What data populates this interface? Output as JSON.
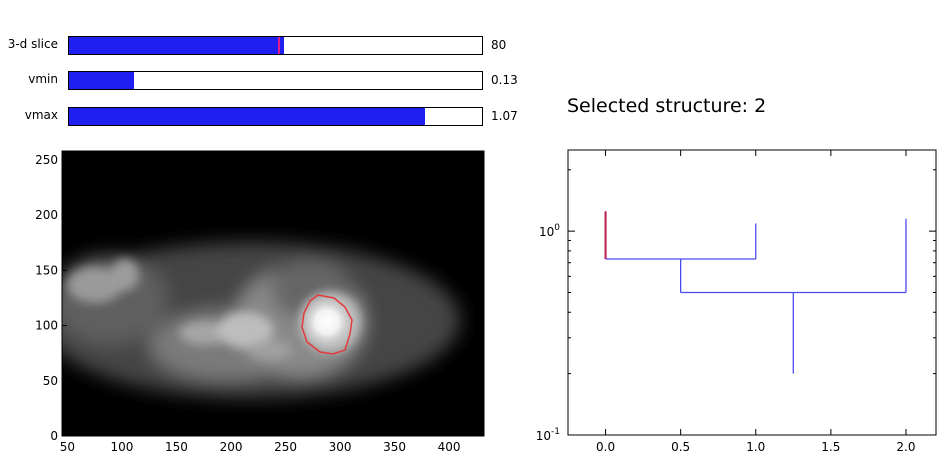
{
  "sliders": [
    {
      "label": "3-d slice",
      "value_text": "80",
      "fill_fraction": 0.52,
      "marker_fraction": 0.505,
      "marker_color": "#e31b8c"
    },
    {
      "label": "vmin",
      "value_text": "0.13",
      "fill_fraction": 0.158
    },
    {
      "label": "vmax",
      "value_text": "1.07",
      "fill_fraction": 0.863
    }
  ],
  "slider_fill_color": "#1f1ff0",
  "selected_structure": "Selected structure: 2",
  "image_view": {
    "colormap": "gray",
    "contour_color": "#e33b3b",
    "xlim": [
      45,
      432
    ],
    "ylim": [
      0,
      258
    ],
    "xticks": [
      "50",
      "100",
      "150",
      "200",
      "250",
      "300",
      "350",
      "400"
    ],
    "yticks": [
      "0",
      "50",
      "100",
      "150",
      "200",
      "250"
    ]
  },
  "chart_data": {
    "type": "line",
    "title": "",
    "xlabel": "",
    "ylabel": "",
    "yscale": "log",
    "xlim": [
      -0.25,
      2.2
    ],
    "ylim": [
      0.1,
      2.5
    ],
    "xticks": [
      "0.0",
      "0.5",
      "1.0",
      "1.5",
      "2.0"
    ],
    "yticks": [
      "10^0",
      "10^-1"
    ],
    "series": [
      {
        "color": "#4b4bf0",
        "segments": [
          [
            [
              0.0,
              0.73
            ],
            [
              0.0,
              1.25
            ]
          ],
          [
            [
              0.0,
              0.73
            ],
            [
              1.0,
              0.73
            ]
          ],
          [
            [
              1.0,
              0.73
            ],
            [
              1.0,
              1.09
            ]
          ],
          [
            [
              0.5,
              0.73
            ],
            [
              0.5,
              0.5
            ]
          ],
          [
            [
              0.5,
              0.5
            ],
            [
              2.0,
              0.5
            ]
          ],
          [
            [
              2.0,
              0.5
            ],
            [
              2.0,
              1.15
            ]
          ],
          [
            [
              1.25,
              0.5
            ],
            [
              1.25,
              0.2
            ]
          ]
        ]
      },
      {
        "color": "#b81f4a",
        "segments": [
          [
            [
              0.0,
              0.73
            ],
            [
              0.0,
              1.25
            ]
          ]
        ]
      }
    ]
  }
}
